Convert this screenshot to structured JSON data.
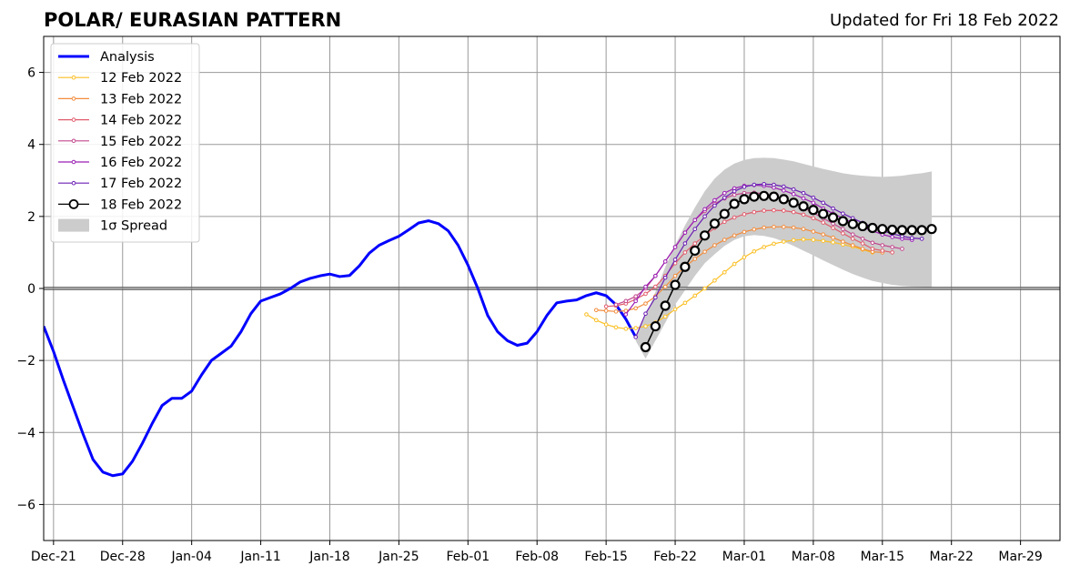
{
  "title": "POLAR/ EURASIAN  PATTERN",
  "subtitle": "Updated for Fri 18 Feb 2022",
  "chart_data": {
    "type": "line",
    "title": "POLAR/ EURASIAN  PATTERN",
    "subtitle": "Updated for Fri 18 Feb 2022",
    "xlabel": "",
    "ylabel": "",
    "xlim": [
      "2021-12-20",
      "2022-04-02"
    ],
    "ylim": [
      -7,
      7
    ],
    "x_ticks": [
      "Dec-21",
      "Dec-28",
      "Jan-04",
      "Jan-11",
      "Jan-18",
      "Jan-25",
      "Feb-01",
      "Feb-08",
      "Feb-15",
      "Feb-22",
      "Mar-01",
      "Mar-08",
      "Mar-15",
      "Mar-22",
      "Mar-29"
    ],
    "x_tick_dates": [
      "2021-12-21",
      "2021-12-28",
      "2022-01-04",
      "2022-01-11",
      "2022-01-18",
      "2022-01-25",
      "2022-02-01",
      "2022-02-08",
      "2022-02-15",
      "2022-02-22",
      "2022-03-01",
      "2022-03-08",
      "2022-03-15",
      "2022-03-22",
      "2022-03-29"
    ],
    "y_ticks": [
      -6,
      -4,
      -2,
      0,
      2,
      4,
      6
    ],
    "y_tick_labels": [
      "−6",
      "−4",
      "−2",
      "0",
      "2",
      "4",
      "6"
    ],
    "grid": true,
    "legend_position": "top-left",
    "analysis": {
      "name": "Analysis",
      "color": "#0000ff",
      "start_date": "2021-12-20",
      "values": [
        -1.05,
        -1.75,
        -2.55,
        -3.3,
        -4.05,
        -4.75,
        -5.1,
        -5.2,
        -5.15,
        -4.8,
        -4.3,
        -3.75,
        -3.25,
        -3.05,
        -3.05,
        -2.85,
        -2.4,
        -2.0,
        -1.8,
        -1.6,
        -1.2,
        -0.7,
        -0.35,
        -0.25,
        -0.15,
        0.0,
        0.18,
        0.28,
        0.35,
        0.4,
        0.33,
        0.36,
        0.63,
        0.98,
        1.2,
        1.33,
        1.45,
        1.63,
        1.82,
        1.88,
        1.8,
        1.6,
        1.2,
        0.65,
        0.0,
        -0.75,
        -1.2,
        -1.45,
        -1.58,
        -1.52,
        -1.2,
        -0.75,
        -0.4,
        -0.35,
        -0.32,
        -0.2,
        -0.12,
        -0.2,
        -0.45,
        -0.85,
        -1.35
      ]
    },
    "forecasts": [
      {
        "name": "12 Feb 2022",
        "color": "#fbbf24",
        "start_date": "2022-02-13",
        "values": [
          -0.72,
          -0.88,
          -1.0,
          -1.08,
          -1.12,
          -1.1,
          -1.05,
          -0.95,
          -0.78,
          -0.58,
          -0.4,
          -0.2,
          0.0,
          0.22,
          0.45,
          0.68,
          0.87,
          1.03,
          1.15,
          1.24,
          1.3,
          1.34,
          1.36,
          1.35,
          1.32,
          1.28,
          1.22,
          1.16,
          1.08,
          1.0
        ]
      },
      {
        "name": "13 Feb 2022",
        "color": "#f28c3c",
        "start_date": "2022-02-14",
        "values": [
          -0.6,
          -0.62,
          -0.64,
          -0.62,
          -0.55,
          -0.42,
          -0.22,
          0.05,
          0.35,
          0.6,
          0.82,
          1.02,
          1.2,
          1.35,
          1.47,
          1.57,
          1.64,
          1.69,
          1.71,
          1.71,
          1.69,
          1.65,
          1.58,
          1.5,
          1.41,
          1.3,
          1.2,
          1.1,
          1.02,
          1.0
        ]
      },
      {
        "name": "14 Feb 2022",
        "color": "#e05c6c",
        "start_date": "2022-02-15",
        "values": [
          -0.5,
          -0.48,
          -0.42,
          -0.3,
          -0.15,
          0.05,
          0.35,
          0.7,
          1.0,
          1.25,
          1.47,
          1.68,
          1.85,
          1.97,
          2.06,
          2.12,
          2.16,
          2.17,
          2.16,
          2.12,
          2.05,
          1.95,
          1.83,
          1.68,
          1.53,
          1.38,
          1.25,
          1.1,
          1.05,
          1.0
        ]
      },
      {
        "name": "15 Feb 2022",
        "color": "#c2488e",
        "start_date": "2022-02-16",
        "values": [
          -0.45,
          -0.35,
          -0.22,
          0.0,
          0.35,
          0.75,
          1.15,
          1.55,
          1.9,
          2.15,
          2.35,
          2.5,
          2.6,
          2.65,
          2.66,
          2.63,
          2.57,
          2.48,
          2.37,
          2.25,
          2.1,
          1.95,
          1.8,
          1.65,
          1.5,
          1.38,
          1.27,
          1.2,
          1.15,
          1.1
        ]
      },
      {
        "name": "16 Feb 2022",
        "color": "#9b1fb4",
        "start_date": "2022-02-17",
        "values": [
          -0.72,
          -0.35,
          0.05,
          0.35,
          0.75,
          1.15,
          1.55,
          1.9,
          2.2,
          2.45,
          2.65,
          2.78,
          2.85,
          2.87,
          2.85,
          2.8,
          2.72,
          2.62,
          2.5,
          2.38,
          2.22,
          2.08,
          1.95,
          1.82,
          1.7,
          1.6,
          1.5,
          1.43,
          1.38,
          1.35
        ]
      },
      {
        "name": "17 Feb 2022",
        "color": "#6b1fb4",
        "start_date": "2022-02-18",
        "values": [
          -1.35,
          -0.7,
          -0.25,
          0.3,
          0.8,
          1.25,
          1.65,
          2.0,
          2.3,
          2.52,
          2.7,
          2.82,
          2.88,
          2.9,
          2.88,
          2.83,
          2.75,
          2.65,
          2.52,
          2.38,
          2.22,
          2.08,
          1.95,
          1.82,
          1.7,
          1.6,
          1.52,
          1.45,
          1.4,
          1.38
        ]
      },
      {
        "name": "18 Feb 2022",
        "color": "#000000",
        "start_date": "2022-02-19",
        "values": [
          -1.63,
          -1.05,
          -0.48,
          0.1,
          0.6,
          1.05,
          1.47,
          1.8,
          2.07,
          2.35,
          2.48,
          2.55,
          2.57,
          2.55,
          2.48,
          2.38,
          2.28,
          2.18,
          2.07,
          1.97,
          1.87,
          1.79,
          1.73,
          1.68,
          1.65,
          1.63,
          1.62,
          1.62,
          1.62,
          1.65
        ]
      }
    ],
    "spread": {
      "name": "1σ Spread",
      "color": "#cccccc",
      "start_date": "2022-02-18",
      "upper": [
        -1.35,
        -0.75,
        -0.1,
        0.6,
        1.2,
        1.75,
        2.25,
        2.7,
        3.05,
        3.3,
        3.47,
        3.57,
        3.62,
        3.63,
        3.62,
        3.58,
        3.53,
        3.46,
        3.39,
        3.32,
        3.26,
        3.2,
        3.16,
        3.13,
        3.11,
        3.1,
        3.11,
        3.13,
        3.17,
        3.2,
        3.25
      ],
      "lower": [
        -1.45,
        -1.95,
        -1.45,
        -0.95,
        -0.45,
        -0.05,
        0.35,
        0.7,
        0.95,
        1.18,
        1.35,
        1.45,
        1.48,
        1.46,
        1.4,
        1.3,
        1.18,
        1.05,
        0.92,
        0.78,
        0.65,
        0.52,
        0.4,
        0.3,
        0.21,
        0.15,
        0.1,
        0.07,
        0.05,
        0.04,
        0.03
      ]
    }
  }
}
